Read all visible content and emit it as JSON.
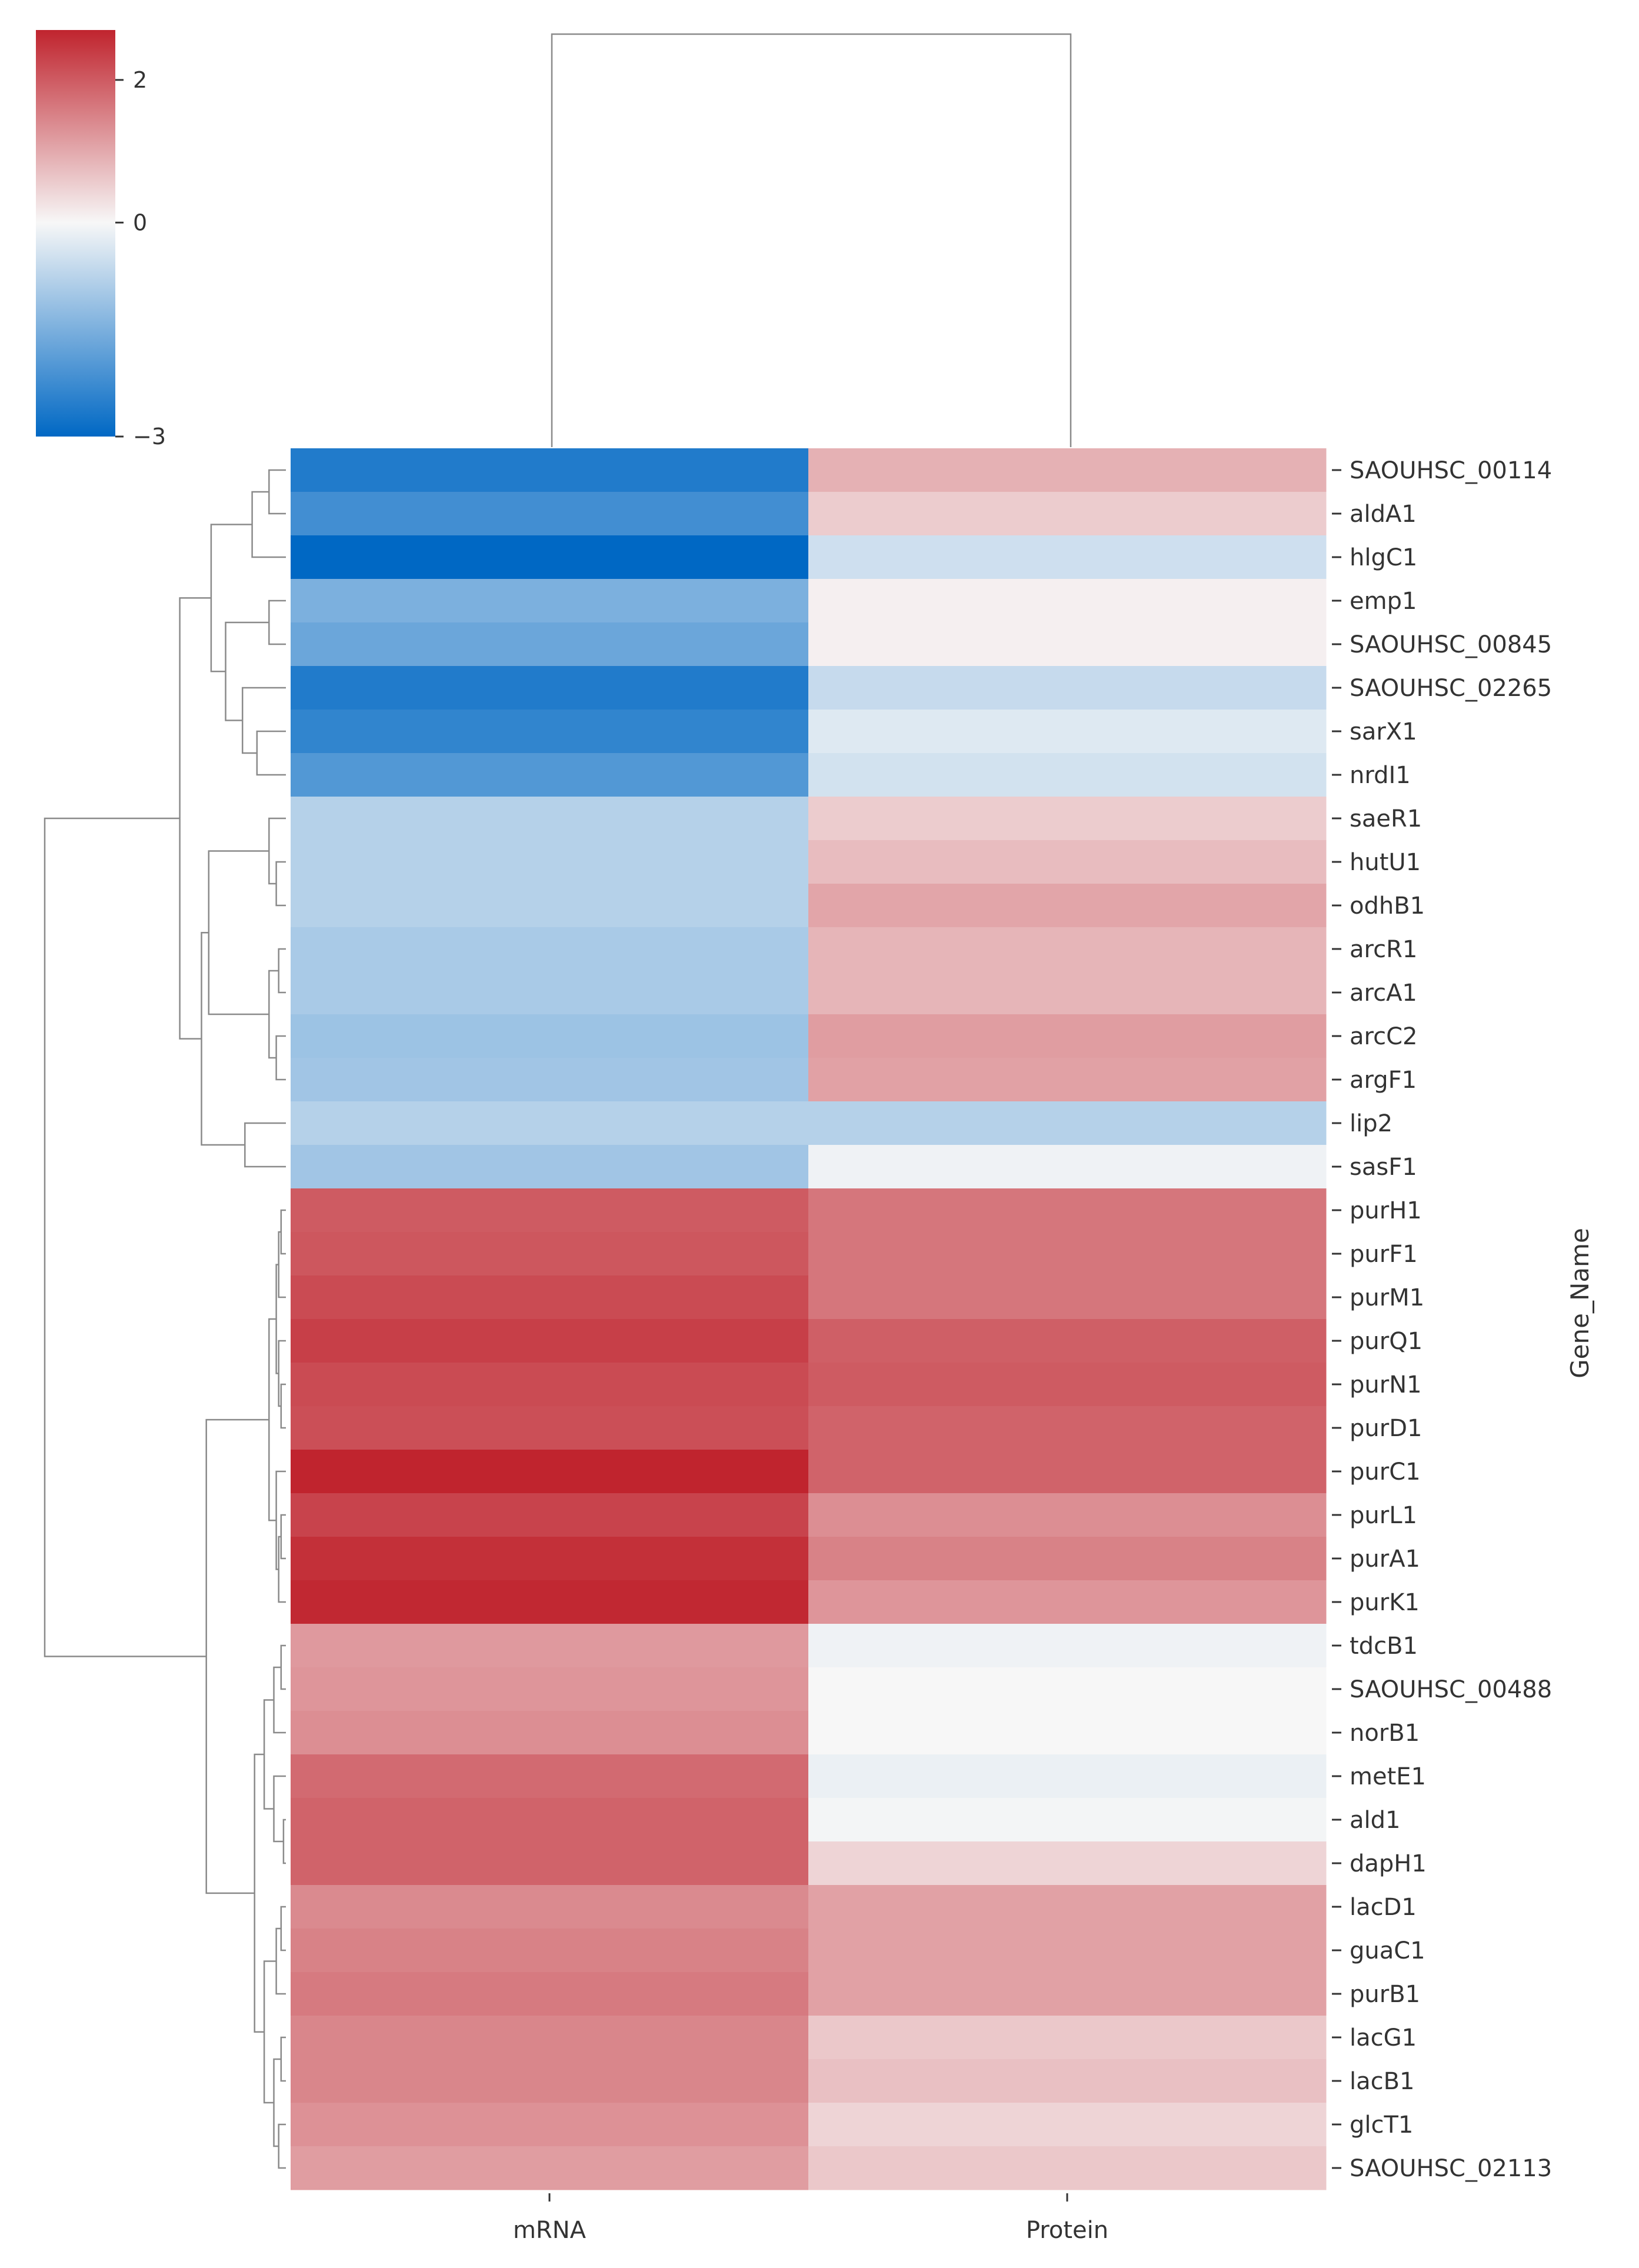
{
  "chart_data": {
    "type": "heatmap",
    "title": "",
    "columns": [
      "mRNA",
      "Protein"
    ],
    "ylabel": "Gene_Name",
    "xlabel": "",
    "colormap": {
      "name": "diverging blue-white-red",
      "vmin": -3,
      "vmax": 2.7,
      "low_color": "#0068c4",
      "mid_color": "#f7f7f7",
      "high_color": "#c0242e",
      "ticks": [
        2,
        0,
        -3
      ]
    },
    "rows": [
      {
        "gene": "SAOUHSC_00114",
        "values": [
          -2.6,
          0.9
        ]
      },
      {
        "gene": "aldA1",
        "values": [
          -2.2,
          0.55
        ]
      },
      {
        "gene": "hlgC1",
        "values": [
          -3.0,
          -0.5
        ]
      },
      {
        "gene": "emp1",
        "values": [
          -1.5,
          0.1
        ]
      },
      {
        "gene": "SAOUHSC_00845",
        "values": [
          -1.7,
          0.1
        ]
      },
      {
        "gene": "SAOUHSC_02265",
        "values": [
          -2.6,
          -0.6
        ]
      },
      {
        "gene": "sarX1",
        "values": [
          -2.4,
          -0.3
        ]
      },
      {
        "gene": "nrdI1",
        "values": [
          -2.0,
          -0.45
        ]
      },
      {
        "gene": "saeR1",
        "values": [
          -0.8,
          0.55
        ]
      },
      {
        "gene": "hutU1",
        "values": [
          -0.8,
          0.75
        ]
      },
      {
        "gene": "odhB1",
        "values": [
          -0.8,
          1.05
        ]
      },
      {
        "gene": "arcR1",
        "values": [
          -0.95,
          0.85
        ]
      },
      {
        "gene": "arcA1",
        "values": [
          -0.95,
          0.85
        ]
      },
      {
        "gene": "arcC2",
        "values": [
          -1.1,
          1.15
        ]
      },
      {
        "gene": "argF1",
        "values": [
          -1.05,
          1.1
        ]
      },
      {
        "gene": "lip2",
        "values": [
          -0.8,
          -0.8
        ]
      },
      {
        "gene": "sasF1",
        "values": [
          -1.05,
          -0.1
        ]
      },
      {
        "gene": "purH1",
        "values": [
          2.0,
          1.65
        ]
      },
      {
        "gene": "purF1",
        "values": [
          2.05,
          1.65
        ]
      },
      {
        "gene": "purM1",
        "values": [
          2.2,
          1.65
        ]
      },
      {
        "gene": "purQ1",
        "values": [
          2.35,
          1.95
        ]
      },
      {
        "gene": "purN1",
        "values": [
          2.2,
          2.0
        ]
      },
      {
        "gene": "purD1",
        "values": [
          2.15,
          1.9
        ]
      },
      {
        "gene": "purC1",
        "values": [
          2.7,
          1.9
        ]
      },
      {
        "gene": "purL1",
        "values": [
          2.3,
          1.35
        ]
      },
      {
        "gene": "purA1",
        "values": [
          2.55,
          1.5
        ]
      },
      {
        "gene": "purK1",
        "values": [
          2.65,
          1.25
        ]
      },
      {
        "gene": "tdcB1",
        "values": [
          1.2,
          -0.1
        ]
      },
      {
        "gene": "SAOUHSC_00488",
        "values": [
          1.25,
          0.0
        ]
      },
      {
        "gene": "norB1",
        "values": [
          1.35,
          0.0
        ]
      },
      {
        "gene": "metE1",
        "values": [
          1.8,
          -0.15
        ]
      },
      {
        "gene": "ald1",
        "values": [
          1.9,
          -0.05
        ]
      },
      {
        "gene": "dapH1",
        "values": [
          1.9,
          0.45
        ]
      },
      {
        "gene": "lacD1",
        "values": [
          1.4,
          1.1
        ]
      },
      {
        "gene": "guaC1",
        "values": [
          1.5,
          1.1
        ]
      },
      {
        "gene": "purB1",
        "values": [
          1.6,
          1.1
        ]
      },
      {
        "gene": "lacG1",
        "values": [
          1.45,
          0.6
        ]
      },
      {
        "gene": "lacB1",
        "values": [
          1.45,
          0.7
        ]
      },
      {
        "gene": "glcT1",
        "values": [
          1.3,
          0.45
        ]
      },
      {
        "gene": "SAOUHSC_02113",
        "values": [
          1.15,
          0.6
        ]
      }
    ]
  }
}
